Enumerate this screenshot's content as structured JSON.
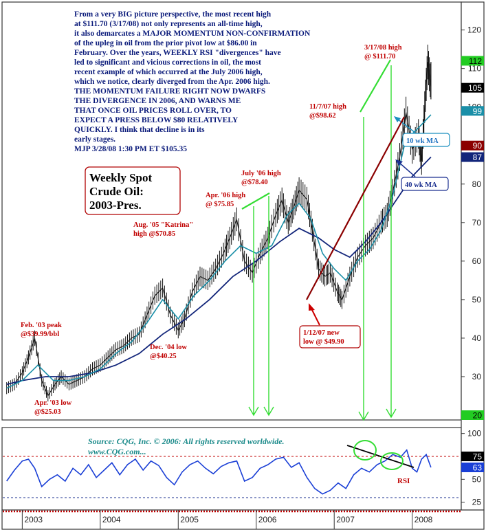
{
  "chart_data": {
    "type": "line",
    "title": "Weekly Spot Crude Oil: 2003-Pres.",
    "title_lines": [
      "Weekly Spot",
      "Crude Oil:",
      "2003-Pres."
    ],
    "commentary": [
      "From a very BIG picture perspective, the most recent high",
      "at $111.70 (3/17/08) not only represents an all-time high,",
      "it also demarcates a MAJOR MOMENTUM NON-CONFIRMATION",
      "of the upleg in oil from the prior pivot low at $86.00 in",
      "February. Over the years, WEEKLY RSI \"divergences\" have",
      "led to significant and vicious corrections in oil, the most",
      "recent example of which occurred at the July 2006 high,",
      "which we notice, clearly diverged from the Apr. 2006 high.",
      "THE MOMENTUM FAILURE RIGHT NOW DWARFS",
      "THE DIVERGENCE IN 2006, AND WARNS ME",
      "THAT ONCE OIL PRICES ROLL OVER, TO",
      "EXPECT A PRESS BELOW $80 RELATIVELY",
      "QUICKLY. I think that decline is in its",
      "early stages.",
      "MJP  3/28/08 1:30 PM ET $105.35"
    ],
    "source": [
      "Source: CQG, Inc. © 2006: All rights reserved worldwide.",
      "www.CQG.com..."
    ],
    "x_tick_labels": [
      "2003",
      "2004",
      "2005",
      "2006",
      "2007",
      "2008"
    ],
    "price_axis": {
      "ylim": [
        20,
        126
      ],
      "ticks": [
        30,
        40,
        50,
        60,
        70,
        80,
        90,
        100,
        110,
        120
      ],
      "markers": [
        "112",
        "105",
        "99",
        "90",
        "87",
        "20"
      ],
      "marker_values": [
        112,
        105,
        99,
        90,
        87,
        20
      ]
    },
    "rsi_axis": {
      "ylim": [
        18,
        105
      ],
      "ticks": [
        25,
        50,
        75,
        100
      ],
      "markers": [
        "75",
        "63"
      ],
      "marker_values": [
        75,
        63
      ],
      "reference_levels": [
        75,
        30
      ]
    },
    "price_series": {
      "name": "Weekly Spot Crude Oil",
      "x": [
        2002.8,
        2002.9,
        2003.0,
        2003.08,
        2003.16,
        2003.25,
        2003.33,
        2003.42,
        2003.5,
        2003.6,
        2003.7,
        2003.8,
        2003.9,
        2004.0,
        2004.1,
        2004.2,
        2004.3,
        2004.4,
        2004.5,
        2004.6,
        2004.7,
        2004.8,
        2004.9,
        2005.0,
        2005.08,
        2005.18,
        2005.28,
        2005.38,
        2005.48,
        2005.58,
        2005.66,
        2005.75,
        2005.85,
        2005.95,
        2006.05,
        2006.15,
        2006.25,
        2006.33,
        2006.41,
        2006.48,
        2006.55,
        2006.65,
        2006.72,
        2006.8,
        2006.88,
        2006.95,
        2007.04,
        2007.1,
        2007.2,
        2007.3,
        2007.4,
        2007.5,
        2007.6,
        2007.68,
        2007.75,
        2007.84,
        2007.92,
        2008.0,
        2008.08,
        2008.12,
        2008.16,
        2008.2,
        2008.24
      ],
      "y": [
        27,
        28,
        31,
        35,
        39.99,
        29,
        25.03,
        28,
        30,
        28,
        29,
        30,
        32,
        33,
        35,
        37,
        38,
        40,
        41,
        46,
        51,
        53,
        46,
        42,
        45,
        52,
        56,
        55,
        58,
        62,
        66,
        70.85,
        60,
        57,
        62,
        66,
        72,
        75.85,
        70,
        74,
        78.4,
        76,
        68,
        58,
        56,
        57,
        52,
        49.9,
        56,
        61,
        64,
        66,
        70,
        72,
        78,
        87,
        98.62,
        89,
        93,
        86,
        100,
        111.7,
        105.35
      ]
    },
    "ma10_series": {
      "name": "10 wk MA",
      "x": [
        2002.8,
        2003.0,
        2003.2,
        2003.4,
        2003.6,
        2003.8,
        2004.0,
        2004.2,
        2004.4,
        2004.6,
        2004.8,
        2005.0,
        2005.2,
        2005.4,
        2005.6,
        2005.8,
        2006.0,
        2006.2,
        2006.4,
        2006.55,
        2006.7,
        2006.85,
        2007.0,
        2007.15,
        2007.3,
        2007.45,
        2007.6,
        2007.75,
        2007.9,
        2008.0,
        2008.1,
        2008.24
      ],
      "y": [
        27,
        29,
        33,
        29,
        29,
        30,
        32,
        36,
        39,
        44,
        50,
        45,
        51,
        55,
        60,
        64,
        62,
        64,
        72,
        75,
        71,
        62,
        58,
        55,
        60,
        63,
        68,
        77,
        90,
        93,
        95,
        98
      ]
    },
    "ma40_series": {
      "name": "40 wk MA",
      "x": [
        2002.8,
        2003.0,
        2003.3,
        2003.6,
        2003.9,
        2004.2,
        2004.5,
        2004.8,
        2005.1,
        2005.4,
        2005.7,
        2006.0,
        2006.3,
        2006.55,
        2006.8,
        2007.0,
        2007.2,
        2007.4,
        2007.6,
        2007.8,
        2008.0,
        2008.24
      ],
      "y": [
        28,
        29,
        30,
        30,
        31,
        33,
        36,
        41,
        45,
        50,
        56,
        60,
        65,
        68.5,
        66,
        63,
        61,
        65,
        70,
        76,
        82,
        87
      ]
    },
    "rsi_series": {
      "name": "RSI",
      "x": [
        2002.8,
        2002.9,
        2003.0,
        2003.08,
        2003.16,
        2003.25,
        2003.35,
        2003.45,
        2003.55,
        2003.65,
        2003.75,
        2003.85,
        2003.95,
        2004.05,
        2004.15,
        2004.25,
        2004.35,
        2004.45,
        2004.55,
        2004.65,
        2004.75,
        2004.85,
        2004.95,
        2005.05,
        2005.15,
        2005.25,
        2005.35,
        2005.45,
        2005.55,
        2005.65,
        2005.75,
        2005.85,
        2005.95,
        2006.05,
        2006.15,
        2006.25,
        2006.35,
        2006.45,
        2006.55,
        2006.65,
        2006.75,
        2006.85,
        2006.95,
        2007.05,
        2007.15,
        2007.25,
        2007.35,
        2007.45,
        2007.55,
        2007.65,
        2007.75,
        2007.85,
        2007.93,
        2008.0,
        2008.06,
        2008.12,
        2008.18,
        2008.24
      ],
      "y": [
        48,
        60,
        70,
        72,
        62,
        42,
        50,
        55,
        48,
        62,
        55,
        66,
        52,
        60,
        68,
        55,
        66,
        72,
        60,
        70,
        65,
        52,
        44,
        58,
        66,
        70,
        62,
        56,
        64,
        68,
        70,
        48,
        52,
        62,
        66,
        72,
        74,
        63,
        68,
        52,
        40,
        34,
        38,
        46,
        40,
        55,
        62,
        58,
        66,
        70,
        77,
        74,
        82,
        62,
        58,
        72,
        77,
        63
      ]
    },
    "annotations": {
      "feb03": [
        "Feb. '03 peak",
        "@$39.99/bbl"
      ],
      "apr03": [
        "Apr. '03 low",
        "@$25.03"
      ],
      "dec04": [
        "Dec. '04 low",
        "@$40.25"
      ],
      "aug05": [
        "Aug. '05 \"Katrina\"",
        "high @$70.85"
      ],
      "apr06": [
        "Apr. '06 high",
        "@ $75.85"
      ],
      "jul06": [
        "July '06 high",
        "@$78.40"
      ],
      "jan07": [
        "1/12/07 new",
        "low @ $49.90"
      ],
      "nov07": [
        "11/7/07 high",
        "@$98.62"
      ],
      "mar08": [
        "3/17/08 high",
        "@ $111.70"
      ],
      "ma10_label": "10 wk MA",
      "ma40_label": "40 wk MA",
      "rsi_label": "RSI"
    },
    "xlim": [
      2002.75,
      2008.62
    ],
    "grid": false,
    "legend": "none"
  }
}
